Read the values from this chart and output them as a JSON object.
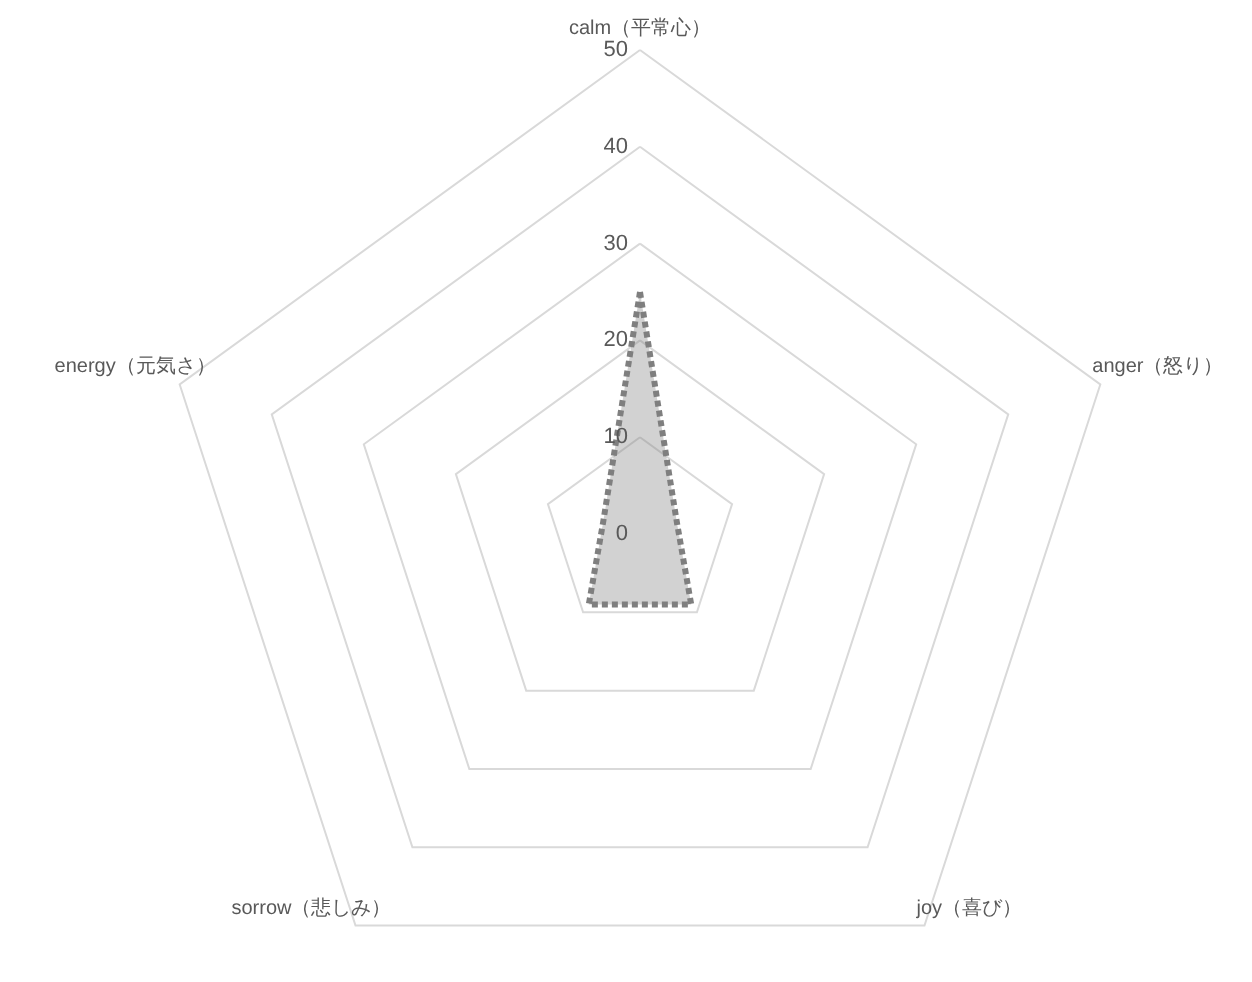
{
  "chart_data": {
    "type": "radar",
    "categories": [
      "calm（平常心）",
      "anger（怒り）",
      "joy（喜び）",
      "sorrow（悲しみ）",
      "energy（元気さ）"
    ],
    "series": [
      {
        "color": "#7f7f7f",
        "values": [
          25,
          4,
          9,
          9,
          4
        ]
      }
    ],
    "ylim": [
      0,
      50
    ],
    "yticks": [
      0,
      10,
      20,
      30,
      40,
      50
    ],
    "grid": true,
    "line_style": "dotted"
  }
}
